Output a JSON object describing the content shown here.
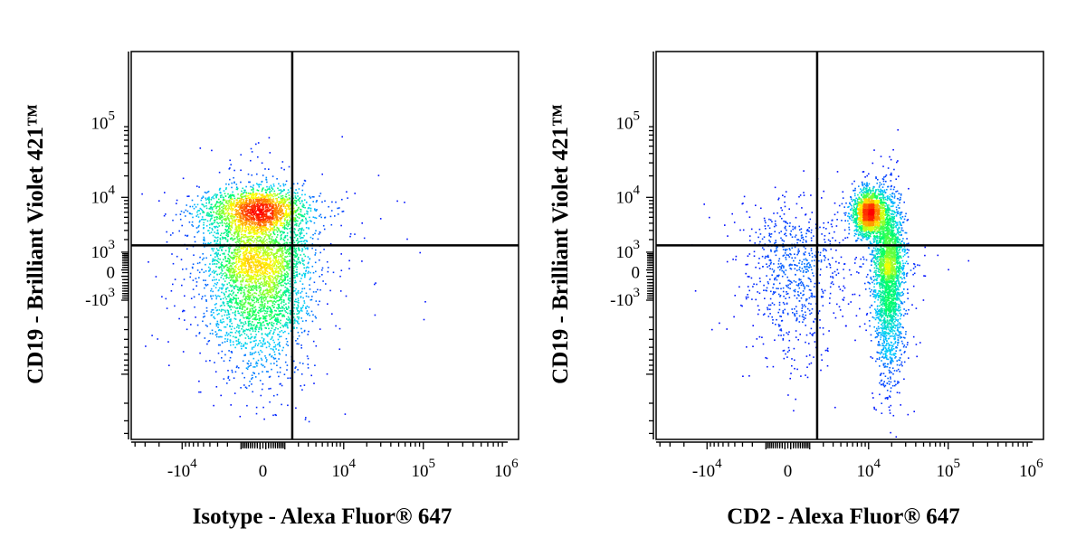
{
  "chart_data": [
    {
      "type": "scatter",
      "subtype": "flow-cytometry-density-dot-plot",
      "xlabel": "Isotype - Alexa Fluor® 647",
      "ylabel": "CD19 - Brilliant Violet 421™",
      "xscale": "biexponential",
      "yscale": "biexponential",
      "x_ticks": [
        {
          "label": "-10",
          "exp": "4",
          "value": -10000
        },
        {
          "label": "0",
          "exp": "",
          "value": 0
        },
        {
          "label": "10",
          "exp": "4",
          "value": 10000
        },
        {
          "label": "10",
          "exp": "5",
          "value": 100000
        },
        {
          "label": "10",
          "exp": "6",
          "value": 1000000
        }
      ],
      "y_ticks": [
        {
          "label": "10",
          "exp": "5",
          "value": 100000
        },
        {
          "label": "10",
          "exp": "4",
          "value": 10000
        },
        {
          "label": "10",
          "exp": "3",
          "value": 1000
        },
        {
          "label": "0",
          "exp": "",
          "value": 0
        },
        {
          "label": "-10",
          "exp": "3",
          "value": -1000
        }
      ],
      "quadrant_gate": {
        "x": 1500,
        "y": 1500
      },
      "populations": [
        {
          "center_x": -200,
          "center_y": 6500,
          "share": 0.32
        },
        {
          "center_x": -200,
          "center_y": 80,
          "share": 0.68
        }
      ],
      "grid": false,
      "legend": "none",
      "colormap": [
        "#0000ff",
        "#00ccff",
        "#00ff66",
        "#ffff00",
        "#ff8800",
        "#ff0000"
      ]
    },
    {
      "type": "scatter",
      "subtype": "flow-cytometry-density-dot-plot",
      "xlabel": "CD2 - Alexa Fluor® 647",
      "ylabel": "CD19 - Brilliant Violet 421™",
      "xscale": "biexponential",
      "yscale": "biexponential",
      "x_ticks": [
        {
          "label": "-10",
          "exp": "4",
          "value": -10000
        },
        {
          "label": "0",
          "exp": "",
          "value": 0
        },
        {
          "label": "10",
          "exp": "4",
          "value": 10000
        },
        {
          "label": "10",
          "exp": "5",
          "value": 100000
        },
        {
          "label": "10",
          "exp": "6",
          "value": 1000000
        }
      ],
      "y_ticks": [
        {
          "label": "10",
          "exp": "5",
          "value": 100000
        },
        {
          "label": "10",
          "exp": "4",
          "value": 10000
        },
        {
          "label": "10",
          "exp": "3",
          "value": 1000
        },
        {
          "label": "0",
          "exp": "",
          "value": 0
        },
        {
          "label": "-10",
          "exp": "3",
          "value": -1000
        }
      ],
      "quadrant_gate": {
        "x": 1500,
        "y": 1500
      },
      "populations": [
        {
          "center_x": 10000,
          "center_y": 6000,
          "share": 0.35
        },
        {
          "center_x": 18000,
          "center_y": 50,
          "share": 0.5
        },
        {
          "center_x": 200,
          "center_y": 100,
          "share": 0.15
        }
      ],
      "grid": false,
      "legend": "none",
      "colormap": [
        "#0000ff",
        "#00ccff",
        "#00ff66",
        "#ffff00",
        "#ff8800",
        "#ff0000"
      ]
    }
  ]
}
